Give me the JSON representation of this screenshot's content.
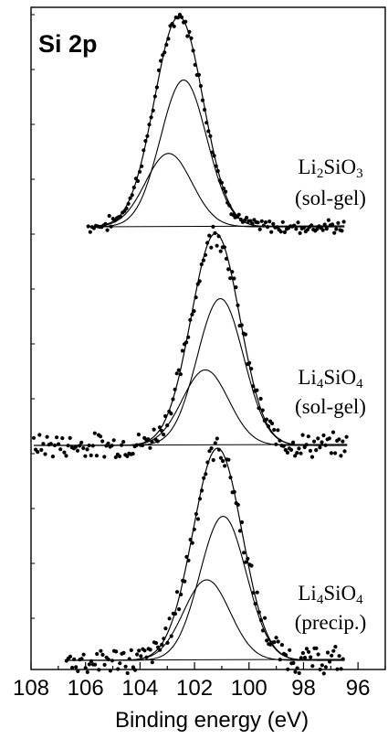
{
  "chart_data": {
    "type": "line",
    "title": "Si 2p",
    "xlabel": "Binding energy (eV)",
    "ylabel": "",
    "x_reversed": true,
    "xlim": [
      108,
      95
    ],
    "x_ticks": [
      "108",
      "106",
      "104",
      "102",
      "100",
      "98",
      "96"
    ],
    "grid": false,
    "panels": [
      {
        "label_line1": "Li2SiO3",
        "label_line2": "(sol-gel)",
        "formula": {
          "a": "Li",
          "a_sub": "2",
          "b": "SiO",
          "b_sub": "3"
        },
        "x_range": [
          105.9,
          96.5
        ],
        "envelope": {
          "center": 102.6,
          "height": 1.0
        },
        "components": [
          {
            "center": 102.4,
            "sigma": 0.85,
            "height": 0.7
          },
          {
            "center": 102.95,
            "sigma": 0.85,
            "height": 0.35
          }
        ],
        "scatter_noise": 0.012
      },
      {
        "label_line1": "Li4SiO4",
        "label_line2": "(sol-gel)",
        "formula": {
          "a": "Li",
          "a_sub": "4",
          "b": "SiO",
          "b_sub": "4"
        },
        "x_range": [
          107.9,
          96.4
        ],
        "envelope": {
          "center": 101.25,
          "height": 1.0
        },
        "components": [
          {
            "center": 101.05,
            "sigma": 0.85,
            "height": 0.7
          },
          {
            "center": 101.6,
            "sigma": 0.85,
            "height": 0.36
          }
        ],
        "scatter_noise": 0.025
      },
      {
        "label_line1": "Li4SiO4",
        "label_line2": "(precip.)",
        "formula": {
          "a": "Li",
          "a_sub": "4",
          "b": "SiO",
          "b_sub": "4"
        },
        "x_range": [
          106.7,
          96.5
        ],
        "envelope": {
          "center": 101.2,
          "height": 1.0
        },
        "components": [
          {
            "center": 100.95,
            "sigma": 0.85,
            "height": 0.68
          },
          {
            "center": 101.55,
            "sigma": 0.85,
            "height": 0.38
          }
        ],
        "scatter_noise": 0.03
      }
    ]
  }
}
